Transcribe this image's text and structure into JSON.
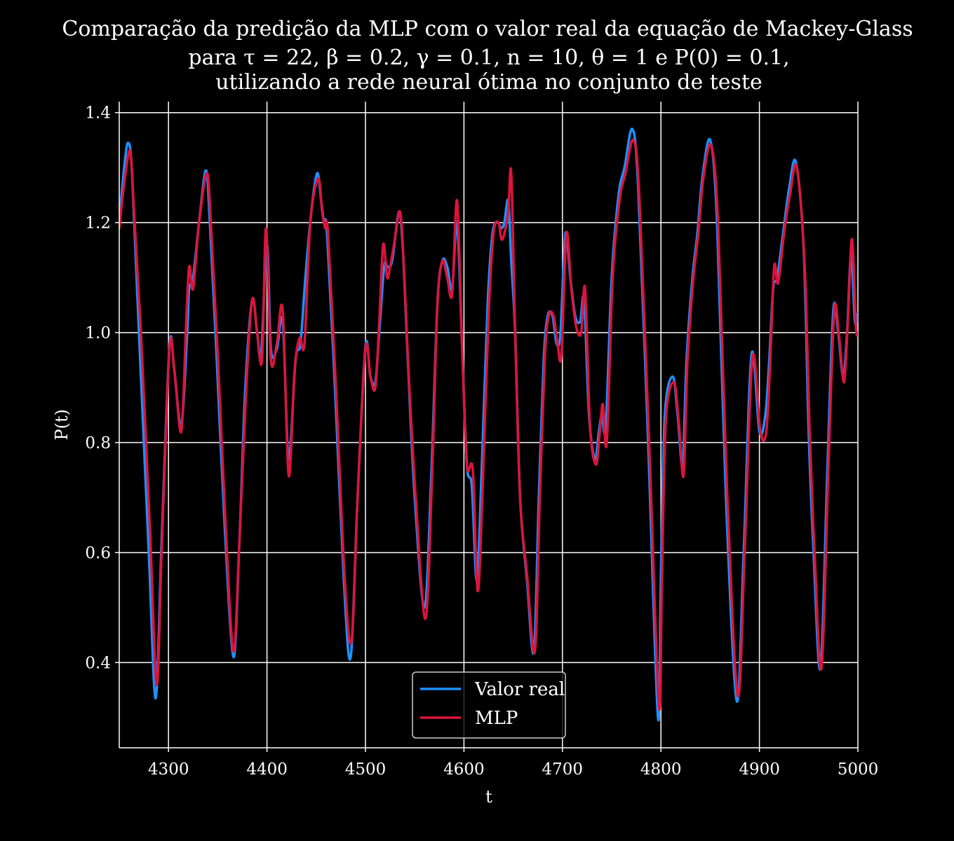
{
  "chart_data": {
    "type": "line",
    "title": [
      "Comparação da predição da MLP com o valor real da equação de Mackey-Glass",
      "para τ = 22, β = 0.2, γ = 0.1, n = 10, θ = 1 e P(0) = 0.1,",
      "utilizando a rede neural ótima no conjunto de teste"
    ],
    "xlabel": "t",
    "ylabel": "P(t)",
    "xlim": [
      4250,
      5000
    ],
    "ylim": [
      0.245,
      1.42
    ],
    "xticks": [
      4300,
      4400,
      4500,
      4600,
      4700,
      4800,
      4900,
      5000
    ],
    "yticks": [
      0.4,
      0.6,
      0.8,
      1.0,
      1.2,
      1.4
    ],
    "xtick_labels": [
      "4300",
      "4400",
      "4500",
      "4600",
      "4700",
      "4800",
      "4900",
      "5000"
    ],
    "ytick_labels": [
      "0.4",
      "0.6",
      "0.8",
      "1.0",
      "1.2",
      "1.4"
    ],
    "grid": true,
    "legend_position": "bottom-center",
    "series": [
      {
        "name": "Valor real",
        "color": "#1e90ff",
        "x": [
          4250,
          4255,
          4259,
          4263,
          4270,
          4280,
          4287,
          4293,
          4301,
          4306,
          4313,
          4319,
          4321,
          4325,
          4331,
          4338,
          4342,
          4349,
          4357,
          4366,
          4372,
          4378,
          4385,
          4390,
          4394,
          4400,
          4404,
          4410,
          4416,
          4422,
          4429,
          4434,
          4439,
          4445,
          4451,
          4455,
          4458,
          4461,
          4469,
          4478,
          4485,
          4492,
          4500,
          4505,
          4510,
          4514,
          4519,
          4522,
          4525,
          4528,
          4534,
          4538,
          4543,
          4550,
          4560,
          4567,
          4573,
          4578,
          4583,
          4588,
          4593,
          4598,
          4603,
          4608,
          4613,
          4618,
          4624,
          4629,
          4634,
          4638,
          4641,
          4645,
          4648,
          4652,
          4657,
          4664,
          4671,
          4676,
          4681,
          4685,
          4690,
          4694,
          4698,
          4703,
          4708,
          4713,
          4718,
          4722,
          4727,
          4733,
          4737,
          4740,
          4744,
          4750,
          4757,
          4763,
          4771,
          4777,
          4787,
          4797,
          4800,
          4804,
          4812,
          4817,
          4822,
          4826,
          4832,
          4837,
          4842,
          4850,
          4857,
          4866,
          4877,
          4884,
          4892,
          4900,
          4906,
          4910,
          4914,
          4918,
          4924,
          4930,
          4937,
          4945,
          4950,
          4955,
          4962,
          4969,
          4975,
          4980,
          4985,
          4989,
          4993,
          4997,
          5000
        ],
        "y": [
          1.2,
          1.3,
          1.345,
          1.29,
          1.0,
          0.6,
          0.335,
          0.62,
          0.975,
          0.93,
          0.83,
          1.0,
          1.08,
          1.1,
          1.2,
          1.295,
          1.2,
          0.95,
          0.65,
          0.41,
          0.62,
          0.9,
          1.06,
          1.0,
          0.96,
          1.16,
          0.97,
          0.97,
          1.02,
          0.77,
          0.95,
          0.98,
          1.1,
          1.22,
          1.29,
          1.24,
          1.2,
          1.18,
          0.9,
          0.55,
          0.41,
          0.7,
          0.975,
          0.92,
          0.91,
          1.0,
          1.12,
          1.12,
          1.12,
          1.14,
          1.22,
          1.15,
          0.95,
          0.7,
          0.5,
          0.75,
          1.05,
          1.13,
          1.12,
          1.08,
          1.2,
          0.98,
          0.76,
          0.72,
          0.55,
          0.75,
          1.05,
          1.18,
          1.2,
          1.19,
          1.2,
          1.24,
          1.13,
          1.0,
          0.7,
          0.55,
          0.42,
          0.7,
          0.95,
          1.03,
          1.03,
          0.98,
          1.0,
          1.18,
          1.1,
          1.03,
          1.02,
          1.06,
          0.85,
          0.77,
          0.82,
          0.85,
          0.83,
          1.1,
          1.25,
          1.3,
          1.37,
          1.26,
          0.8,
          0.3,
          0.56,
          0.85,
          0.92,
          0.85,
          0.76,
          0.95,
          1.1,
          1.18,
          1.28,
          1.35,
          1.2,
          0.7,
          0.33,
          0.6,
          0.96,
          0.82,
          0.85,
          0.95,
          1.08,
          1.1,
          1.18,
          1.26,
          1.31,
          1.15,
          0.82,
          0.6,
          0.39,
          0.75,
          1.04,
          1.0,
          0.92,
          1.0,
          1.14,
          1.02,
          1.035
        ]
      },
      {
        "name": "MLP",
        "color": "#dc143c",
        "x": [
          4250,
          4255,
          4261,
          4265,
          4272,
          4281,
          4288,
          4293,
          4301,
          4306,
          4313,
          4318,
          4321,
          4325,
          4331,
          4339,
          4343,
          4350,
          4358,
          4366,
          4372,
          4379,
          4385,
          4390,
          4395,
          4399,
          4404,
          4410,
          4416,
          4422,
          4428,
          4433,
          4438,
          4444,
          4452,
          4456,
          4459,
          4462,
          4470,
          4479,
          4486,
          4492,
          4500,
          4505,
          4510,
          4514,
          4518,
          4522,
          4525,
          4529,
          4535,
          4539,
          4544,
          4551,
          4561,
          4568,
          4573,
          4578,
          4583,
          4588,
          4593,
          4598,
          4603,
          4609,
          4614,
          4619,
          4625,
          4630,
          4635,
          4638,
          4641,
          4645,
          4648,
          4652,
          4657,
          4664,
          4672,
          4677,
          4682,
          4686,
          4691,
          4695,
          4699,
          4704,
          4709,
          4714,
          4719,
          4723,
          4728,
          4734,
          4738,
          4741,
          4745,
          4751,
          4758,
          4764,
          4772,
          4778,
          4788,
          4798,
          4801,
          4805,
          4813,
          4818,
          4823,
          4827,
          4833,
          4838,
          4843,
          4851,
          4858,
          4867,
          4878,
          4885,
          4893,
          4901,
          4907,
          4911,
          4915,
          4919,
          4925,
          4931,
          4938,
          4946,
          4951,
          4956,
          4963,
          4970,
          4976,
          4981,
          4986,
          4990,
          4994,
          4998,
          5000
        ],
        "y": [
          1.19,
          1.27,
          1.33,
          1.22,
          1.0,
          0.65,
          0.36,
          0.6,
          0.97,
          0.93,
          0.82,
          1.02,
          1.12,
          1.08,
          1.2,
          1.29,
          1.2,
          0.96,
          0.65,
          0.42,
          0.62,
          0.9,
          1.06,
          1.0,
          0.95,
          1.19,
          0.95,
          0.98,
          1.04,
          0.74,
          0.93,
          0.99,
          0.98,
          1.2,
          1.28,
          1.22,
          1.19,
          1.18,
          0.9,
          0.55,
          0.44,
          0.7,
          0.97,
          0.92,
          0.9,
          1.02,
          1.16,
          1.1,
          1.12,
          1.16,
          1.22,
          1.12,
          0.92,
          0.7,
          0.48,
          0.76,
          1.05,
          1.13,
          1.1,
          1.07,
          1.24,
          0.98,
          0.76,
          0.75,
          0.53,
          0.72,
          1.03,
          1.18,
          1.2,
          1.17,
          1.18,
          1.22,
          1.29,
          1.0,
          0.7,
          0.56,
          0.42,
          0.7,
          0.95,
          1.03,
          1.03,
          0.98,
          0.96,
          1.18,
          1.08,
          1.01,
          1.0,
          1.08,
          0.83,
          0.76,
          0.82,
          0.87,
          0.8,
          1.1,
          1.24,
          1.29,
          1.35,
          1.25,
          0.8,
          0.32,
          0.55,
          0.84,
          0.91,
          0.84,
          0.74,
          0.95,
          1.1,
          1.18,
          1.28,
          1.34,
          1.2,
          0.72,
          0.34,
          0.6,
          0.955,
          0.82,
          0.82,
          0.95,
          1.12,
          1.09,
          1.18,
          1.25,
          1.3,
          1.12,
          0.82,
          0.6,
          0.39,
          0.75,
          1.04,
          0.99,
          0.91,
          1.03,
          1.17,
          1.01,
          1.0
        ]
      }
    ]
  }
}
